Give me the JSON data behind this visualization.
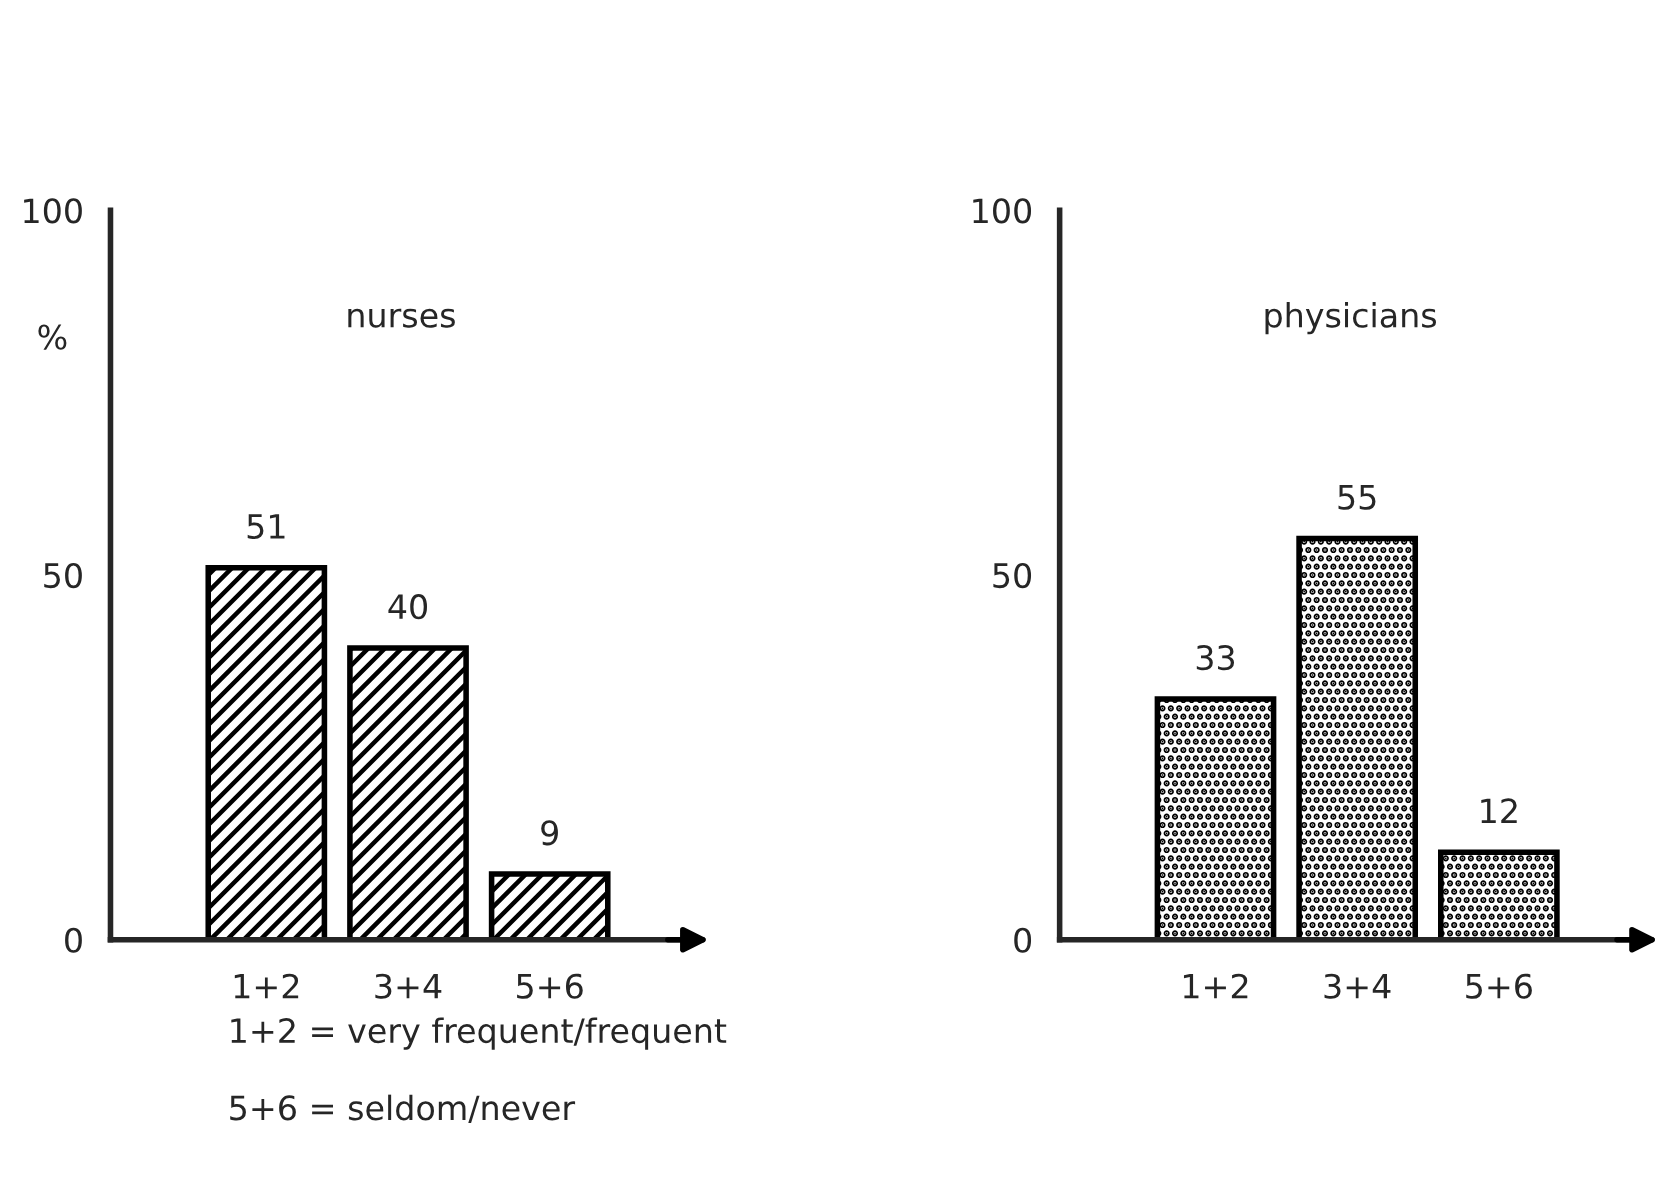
{
  "chart_data": [
    {
      "type": "bar",
      "title": "nurses",
      "ylabel": "%",
      "categories": [
        "1+2",
        "3+4",
        "5+6"
      ],
      "values": [
        51,
        40,
        9
      ],
      "color": "#000000",
      "ylim": [
        0,
        100
      ],
      "yticks": [
        0,
        50,
        100
      ],
      "data_labels": true,
      "grid": false,
      "legend": false,
      "annotations": [
        "1+2 = very frequent/frequent",
        "5+6 = seldom/never"
      ]
    },
    {
      "type": "bar",
      "title": "physicians",
      "categories": [
        "1+2",
        "3+4",
        "5+6"
      ],
      "values": [
        33,
        55,
        12
      ],
      "color": "#000000",
      "ylim": [
        0,
        100
      ],
      "yticks": [
        0,
        50,
        100
      ],
      "data_labels": true,
      "grid": false,
      "legend": false
    }
  ]
}
